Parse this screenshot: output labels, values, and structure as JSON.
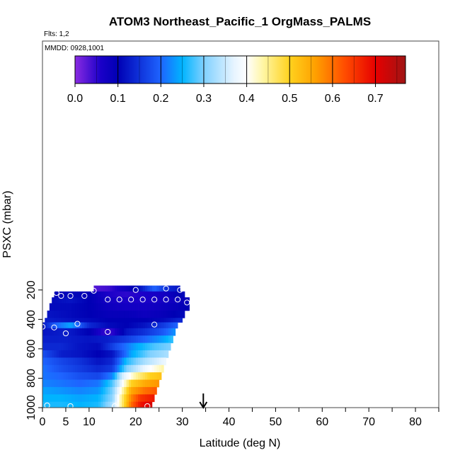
{
  "chart_data": {
    "type": "heatmap",
    "title": "ATOM3 Northeast_Pacific_1 OrgMass_PALMS",
    "subtitle_flights": "Flts: 1,2",
    "subtitle_dates": "MMDD: 0928,1001",
    "xlabel": "Latitude (deg N)",
    "ylabel": "PSXC (mbar)",
    "xlim": [
      0,
      85
    ],
    "ylim": [
      1000,
      50
    ],
    "x_ticks": [
      0,
      5,
      10,
      20,
      30,
      40,
      50,
      60,
      70,
      80
    ],
    "x_minor_ticks": [
      0,
      5,
      10,
      15,
      20,
      25,
      30,
      35,
      40,
      45,
      50,
      55,
      60,
      65,
      70,
      75,
      80,
      85
    ],
    "y_ticks": [
      200,
      400,
      600,
      800,
      1000
    ],
    "grid": false,
    "colorbar": {
      "min": 0.0,
      "max": 0.77,
      "ticks": [
        0.0,
        0.1,
        0.2,
        0.3,
        0.4,
        0.5,
        0.6,
        0.7
      ],
      "tick_labels": [
        "0.0",
        "0.1",
        "0.2",
        "0.3",
        "0.4",
        "0.5",
        "0.6",
        "0.7"
      ],
      "stops": [
        {
          "v": 0.0,
          "color": "#8a2be2"
        },
        {
          "v": 0.06,
          "color": "#1a00c8"
        },
        {
          "v": 0.1,
          "color": "#0000b4"
        },
        {
          "v": 0.2,
          "color": "#1e64ff"
        },
        {
          "v": 0.25,
          "color": "#00b4ff"
        },
        {
          "v": 0.3,
          "color": "#7fd0ff"
        },
        {
          "v": 0.37,
          "color": "#e6f4ff"
        },
        {
          "v": 0.4,
          "color": "#ffffff"
        },
        {
          "v": 0.44,
          "color": "#fff5a0"
        },
        {
          "v": 0.5,
          "color": "#ffd21e"
        },
        {
          "v": 0.56,
          "color": "#ffa000"
        },
        {
          "v": 0.63,
          "color": "#ff4b00"
        },
        {
          "v": 0.7,
          "color": "#e60000"
        },
        {
          "v": 0.77,
          "color": "#a01414"
        }
      ]
    },
    "curtain_rows": [
      {
        "p_top": 170,
        "p_bot": 210,
        "lat_start": 11,
        "lat_end": 29.5,
        "x": [
          11,
          14,
          18,
          21,
          24,
          27,
          29.5
        ],
        "v": [
          0.03,
          0.04,
          0.08,
          0.12,
          0.2,
          0.14,
          0.12
        ]
      },
      {
        "p_top": 210,
        "p_bot": 250,
        "lat_start": 2.5,
        "lat_end": 30.5,
        "x": [
          2.5,
          6,
          10,
          14,
          18,
          22,
          26,
          30.5
        ],
        "v": [
          0.1,
          0.11,
          0.1,
          0.06,
          0.05,
          0.06,
          0.07,
          0.11
        ]
      },
      {
        "p_top": 250,
        "p_bot": 290,
        "lat_start": 2,
        "lat_end": 31.5,
        "x": [
          2,
          6,
          10,
          14,
          18,
          22,
          26,
          31.5
        ],
        "v": [
          0.11,
          0.12,
          0.1,
          0.07,
          0.06,
          0.06,
          0.07,
          0.09
        ]
      },
      {
        "p_top": 290,
        "p_bot": 340,
        "lat_start": 1.5,
        "lat_end": 31.5,
        "x": [
          1.5,
          6,
          10,
          14,
          18,
          22,
          26,
          31.5
        ],
        "v": [
          0.11,
          0.11,
          0.1,
          0.08,
          0.07,
          0.07,
          0.08,
          0.1
        ]
      },
      {
        "p_top": 340,
        "p_bot": 390,
        "lat_start": 1,
        "lat_end": 30.5,
        "x": [
          1,
          6,
          10,
          14,
          18,
          22,
          26,
          30.5
        ],
        "v": [
          0.12,
          0.11,
          0.1,
          0.09,
          0.09,
          0.08,
          0.09,
          0.11
        ]
      },
      {
        "p_top": 390,
        "p_bot": 420,
        "lat_start": 0.5,
        "lat_end": 30,
        "x": [
          0.5,
          5,
          10,
          14,
          18,
          22,
          26,
          30
        ],
        "v": [
          0.13,
          0.12,
          0.11,
          0.1,
          0.1,
          0.1,
          0.11,
          0.14
        ]
      },
      {
        "p_top": 420,
        "p_bot": 460,
        "lat_start": 0,
        "lat_end": 29,
        "x": [
          0,
          3,
          6,
          10,
          14,
          18,
          22,
          26,
          29
        ],
        "v": [
          0.12,
          0.2,
          0.24,
          0.14,
          0.11,
          0.1,
          0.12,
          0.16,
          0.2
        ]
      },
      {
        "p_top": 460,
        "p_bot": 510,
        "lat_start": 0,
        "lat_end": 28.5,
        "x": [
          0,
          5,
          10,
          13,
          15,
          18,
          22,
          26,
          28.5
        ],
        "v": [
          0.12,
          0.13,
          0.1,
          0.05,
          0.05,
          0.12,
          0.15,
          0.19,
          0.23
        ]
      },
      {
        "p_top": 510,
        "p_bot": 560,
        "lat_start": 0,
        "lat_end": 28,
        "x": [
          0,
          5,
          10,
          14,
          18,
          22,
          26,
          28
        ],
        "v": [
          0.13,
          0.13,
          0.12,
          0.13,
          0.16,
          0.2,
          0.24,
          0.27
        ]
      },
      {
        "p_top": 560,
        "p_bot": 610,
        "lat_start": 0,
        "lat_end": 27.5,
        "x": [
          0,
          4,
          8,
          12,
          16,
          20,
          24,
          27.5
        ],
        "v": [
          0.14,
          0.14,
          0.12,
          0.11,
          0.18,
          0.24,
          0.28,
          0.3
        ]
      },
      {
        "p_top": 610,
        "p_bot": 660,
        "lat_start": 0,
        "lat_end": 27,
        "x": [
          0,
          4,
          8,
          12,
          15,
          19,
          23,
          27
        ],
        "v": [
          0.18,
          0.13,
          0.12,
          0.1,
          0.12,
          0.24,
          0.3,
          0.33
        ]
      },
      {
        "p_top": 660,
        "p_bot": 710,
        "lat_start": 0,
        "lat_end": 26.5,
        "x": [
          0,
          4,
          8,
          12,
          15,
          18,
          22,
          26.5
        ],
        "v": [
          0.2,
          0.17,
          0.15,
          0.12,
          0.14,
          0.26,
          0.33,
          0.38
        ]
      },
      {
        "p_top": 710,
        "p_bot": 760,
        "lat_start": 0,
        "lat_end": 26,
        "x": [
          0,
          4,
          8,
          12,
          15,
          18,
          22,
          26
        ],
        "v": [
          0.21,
          0.18,
          0.16,
          0.14,
          0.16,
          0.3,
          0.38,
          0.44
        ]
      },
      {
        "p_top": 760,
        "p_bot": 810,
        "lat_start": 0,
        "lat_end": 25.5,
        "x": [
          0,
          4,
          8,
          12,
          15,
          17,
          20,
          23,
          25.5
        ],
        "v": [
          0.21,
          0.2,
          0.18,
          0.17,
          0.22,
          0.35,
          0.44,
          0.5,
          0.52
        ]
      },
      {
        "p_top": 810,
        "p_bot": 860,
        "lat_start": 0,
        "lat_end": 25,
        "x": [
          0,
          4,
          8,
          12,
          15,
          17,
          19,
          22,
          25
        ],
        "v": [
          0.22,
          0.21,
          0.2,
          0.21,
          0.28,
          0.38,
          0.5,
          0.55,
          0.57
        ]
      },
      {
        "p_top": 860,
        "p_bot": 910,
        "lat_start": 0,
        "lat_end": 24.5,
        "x": [
          0,
          4,
          8,
          12,
          15,
          17,
          19,
          22,
          24.5
        ],
        "v": [
          0.24,
          0.23,
          0.22,
          0.23,
          0.3,
          0.42,
          0.55,
          0.6,
          0.62
        ]
      },
      {
        "p_top": 910,
        "p_bot": 960,
        "lat_start": 0,
        "lat_end": 24,
        "x": [
          0,
          4,
          8,
          12,
          15,
          17,
          19,
          21,
          24
        ],
        "v": [
          0.25,
          0.25,
          0.24,
          0.25,
          0.31,
          0.45,
          0.58,
          0.65,
          0.68
        ]
      },
      {
        "p_top": 960,
        "p_bot": 1000,
        "lat_start": 0,
        "lat_end": 23.5,
        "x": [
          0,
          4,
          8,
          12,
          15,
          17,
          19,
          21,
          23.5
        ],
        "v": [
          0.26,
          0.26,
          0.25,
          0.26,
          0.33,
          0.45,
          0.6,
          0.68,
          0.72
        ]
      }
    ],
    "sample_points": [
      {
        "lat": 11,
        "p": 205
      },
      {
        "lat": 20,
        "p": 200
      },
      {
        "lat": 26.5,
        "p": 190
      },
      {
        "lat": 29.5,
        "p": 200
      },
      {
        "lat": 3,
        "p": 220
      },
      {
        "lat": 4,
        "p": 240
      },
      {
        "lat": 6,
        "p": 240
      },
      {
        "lat": 9,
        "p": 240
      },
      {
        "lat": 14,
        "p": 265
      },
      {
        "lat": 16.5,
        "p": 265
      },
      {
        "lat": 19,
        "p": 265
      },
      {
        "lat": 21.5,
        "p": 265
      },
      {
        "lat": 24,
        "p": 265
      },
      {
        "lat": 26.5,
        "p": 265
      },
      {
        "lat": 29,
        "p": 265
      },
      {
        "lat": 31,
        "p": 285
      },
      {
        "lat": 7.5,
        "p": 430
      },
      {
        "lat": 24,
        "p": 435
      },
      {
        "lat": 0,
        "p": 450
      },
      {
        "lat": 2.5,
        "p": 455
      },
      {
        "lat": 14,
        "p": 485
      },
      {
        "lat": 5,
        "p": 495
      },
      {
        "lat": 1,
        "p": 985
      },
      {
        "lat": 6,
        "p": 990
      },
      {
        "lat": 15.5,
        "p": 990
      },
      {
        "lat": 22.5,
        "p": 990
      }
    ],
    "location_marker_lat": 34.5
  }
}
